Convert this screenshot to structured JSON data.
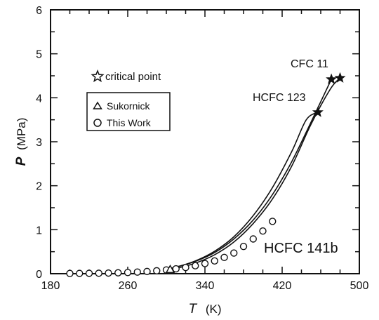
{
  "chart_data": {
    "type": "line",
    "xlabel": "T",
    "xunit": "(K)",
    "ylabel": "P",
    "yunit": "(MPa)",
    "xlim": [
      180,
      500
    ],
    "ylim": [
      0,
      6
    ],
    "xticks": [
      180,
      260,
      340,
      420,
      500
    ],
    "yticks": [
      0,
      1,
      2,
      3,
      4,
      5,
      6
    ],
    "grid": false,
    "legend": {
      "position": "upper-left",
      "critical_point_label": "critical point",
      "entries": [
        {
          "marker": "triangle",
          "label": "Sukornick"
        },
        {
          "marker": "circle",
          "label": "This Work"
        }
      ]
    },
    "annotations": {
      "cfc11": "CFC 11",
      "hcfc123": "HCFC 123",
      "hcfc141b": "HCFC 141b"
    },
    "series": [
      {
        "name": "CFC 11",
        "line": [
          [
            298,
            0.1
          ],
          [
            310,
            0.15
          ],
          [
            330,
            0.28
          ],
          [
            350,
            0.48
          ],
          [
            370,
            0.79
          ],
          [
            390,
            1.22
          ],
          [
            410,
            1.8
          ],
          [
            430,
            2.55
          ],
          [
            450,
            3.45
          ],
          [
            471,
            4.42
          ]
        ],
        "critical_point": [
          471,
          4.42
        ]
      },
      {
        "name": "HCFC 123",
        "line": [
          [
            298,
            0.1
          ],
          [
            310,
            0.15
          ],
          [
            330,
            0.29
          ],
          [
            350,
            0.51
          ],
          [
            370,
            0.84
          ],
          [
            390,
            1.32
          ],
          [
            410,
            1.96
          ],
          [
            430,
            2.78
          ],
          [
            445,
            3.5
          ],
          [
            457,
            3.67
          ]
        ],
        "critical_point": [
          457,
          3.67
        ]
      },
      {
        "name": "HCFC 141b",
        "line": [
          [
            298,
            0.08
          ],
          [
            310,
            0.12
          ],
          [
            330,
            0.24
          ],
          [
            350,
            0.43
          ],
          [
            370,
            0.72
          ],
          [
            390,
            1.14
          ],
          [
            410,
            1.7
          ],
          [
            430,
            2.45
          ],
          [
            450,
            3.4
          ],
          [
            470,
            4.2
          ],
          [
            480,
            4.45
          ]
        ],
        "critical_point": [
          480,
          4.45
        ]
      }
    ],
    "sukornick": [
      [
        304,
        0.09
      ]
    ],
    "this_work": [
      [
        200,
        0.005
      ],
      [
        210,
        0.006
      ],
      [
        220,
        0.008
      ],
      [
        230,
        0.01
      ],
      [
        240,
        0.014
      ],
      [
        250,
        0.02
      ],
      [
        260,
        0.027
      ],
      [
        270,
        0.037
      ],
      [
        280,
        0.05
      ],
      [
        290,
        0.066
      ],
      [
        300,
        0.085
      ],
      [
        310,
        0.11
      ],
      [
        320,
        0.14
      ],
      [
        330,
        0.18
      ],
      [
        340,
        0.23
      ],
      [
        350,
        0.29
      ],
      [
        360,
        0.37
      ],
      [
        370,
        0.47
      ],
      [
        380,
        0.62
      ],
      [
        390,
        0.79
      ],
      [
        400,
        0.97
      ],
      [
        410,
        1.19
      ]
    ]
  }
}
